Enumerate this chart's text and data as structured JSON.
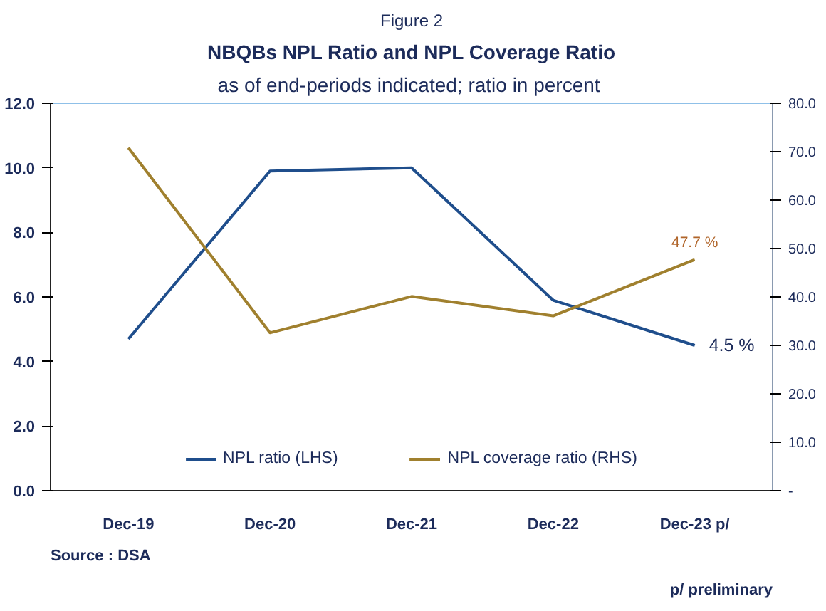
{
  "chart_data": {
    "type": "line",
    "title": "NBQBs NPL Ratio and NPL Coverage Ratio",
    "subtitle": "as of end-periods indicated; ratio  in percent",
    "categories": [
      "Dec-19",
      "Dec-20",
      "Dec-21",
      "Dec-22",
      "Dec-23 p/"
    ],
    "series": [
      {
        "name": "NPL ratio (LHS)",
        "color": "#1f4e8c",
        "values": [
          4.7,
          9.9,
          10.0,
          5.9,
          4.5
        ],
        "value_labels": [
          null,
          null,
          null,
          null,
          "4.5 %"
        ]
      },
      {
        "name": "NPL coverage ratio (RHS)",
        "color": "#a0802e",
        "axis": "y2",
        "values": [
          70.8,
          32.6,
          40.1,
          36.1,
          47.7
        ],
        "value_labels": [
          null,
          null,
          null,
          null,
          "47.7 %"
        ]
      }
    ],
    "ylim": [
      0,
      12
    ],
    "yticks": [
      {
        "value": 0,
        "label": "0.0"
      },
      {
        "value": 2,
        "label": "2.0"
      },
      {
        "value": 4,
        "label": "4.0"
      },
      {
        "value": 6,
        "label": "6.0"
      },
      {
        "value": 8,
        "label": "8.0"
      },
      {
        "value": 10,
        "label": "10.0"
      },
      {
        "value": 12,
        "label": "12.0"
      }
    ],
    "y2lim": [
      0,
      80
    ],
    "y2ticks": [
      {
        "value": 0,
        "label": "-"
      },
      {
        "value": 10,
        "label": "10.0"
      },
      {
        "value": 20,
        "label": "20.0"
      },
      {
        "value": 30,
        "label": "30.0"
      },
      {
        "value": 40,
        "label": "40.0"
      },
      {
        "value": 50,
        "label": "50.0"
      },
      {
        "value": 60,
        "label": "60.0"
      },
      {
        "value": 70,
        "label": "70.0"
      },
      {
        "value": 80,
        "label": "80.0"
      }
    ],
    "annotations": [
      "Figure 2",
      "Source : DSA",
      "p/ preliminary"
    ],
    "legend": "bottom",
    "grid": false,
    "marker": "none",
    "line_style": "solid"
  }
}
